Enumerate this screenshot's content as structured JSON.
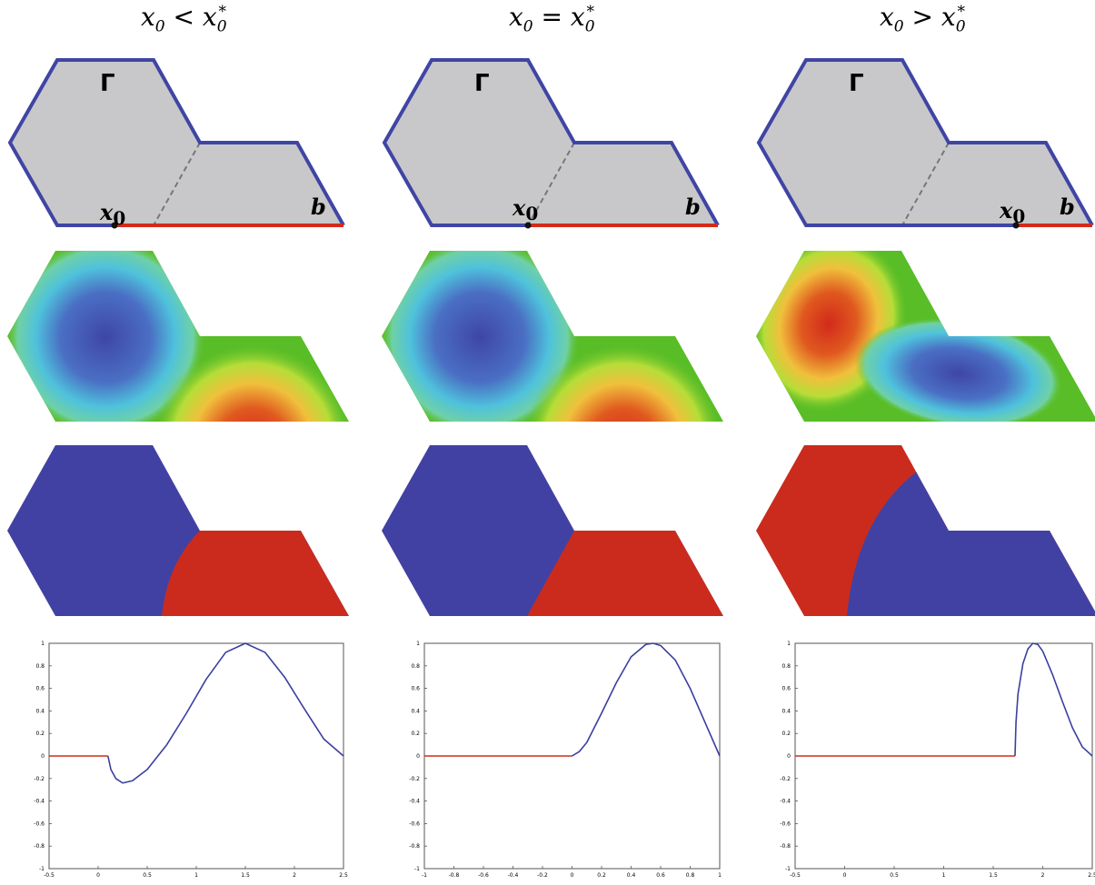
{
  "columns": [
    {
      "header": {
        "lhs": "x",
        "lhs_sub": "0",
        "rel": "<",
        "rhs": "x",
        "rhs_sub": "0",
        "rhs_sup": "*"
      },
      "domain_labels": {
        "gamma": "Γ",
        "point": "x",
        "point_sub": "0",
        "end": "b"
      },
      "x0_position": 0.17,
      "chart_data": {
        "type": "line",
        "xlim": [
          -0.5,
          2.5
        ],
        "ylim": [
          -1,
          1
        ],
        "x_ticks": [
          "-0.5",
          "0",
          "0.5",
          "1",
          "1.5",
          "2",
          "2.5"
        ],
        "y_ticks": [
          "1",
          "0.8",
          "0.6",
          "0.4",
          "0.2",
          "0",
          "-0.2",
          "-0.4",
          "-0.6",
          "-0.8",
          "-1"
        ],
        "series": [
          {
            "color": "#d42a1a",
            "x": [
              -0.5,
              0.1
            ],
            "y": [
              0,
              0
            ]
          },
          {
            "color": "#3a3fa0",
            "x": [
              0.1,
              0.13,
              0.18,
              0.25,
              0.35,
              0.5,
              0.7,
              0.9,
              1.1,
              1.3,
              1.5,
              1.7,
              1.9,
              2.1,
              2.3,
              2.5
            ],
            "y": [
              0,
              -0.12,
              -0.2,
              -0.24,
              -0.22,
              -0.12,
              0.1,
              0.38,
              0.68,
              0.92,
              1.0,
              0.92,
              0.7,
              0.42,
              0.15,
              0.0
            ]
          }
        ]
      }
    },
    {
      "header": {
        "lhs": "x",
        "lhs_sub": "0",
        "rel": "=",
        "rhs": "x",
        "rhs_sub": "0",
        "rhs_sup": "*"
      },
      "domain_labels": {
        "gamma": "Γ",
        "point": "x",
        "point_sub": "0",
        "end": "b"
      },
      "x0_position": 0.5,
      "chart_data": {
        "type": "line",
        "xlim": [
          -1,
          1
        ],
        "ylim": [
          -1,
          1
        ],
        "x_ticks": [
          "-1",
          "-0.8",
          "-0.6",
          "-0.4",
          "-0.2",
          "0",
          "0.2",
          "0.4",
          "0.6",
          "0.8",
          "1"
        ],
        "y_ticks": [
          "1",
          "0.8",
          "0.6",
          "0.4",
          "0.2",
          "0",
          "-0.2",
          "-0.4",
          "-0.6",
          "-0.8",
          "-1"
        ],
        "series": [
          {
            "color": "#d42a1a",
            "x": [
              -1,
              0
            ],
            "y": [
              0,
              0
            ]
          },
          {
            "color": "#3a3fa0",
            "x": [
              0,
              0.05,
              0.1,
              0.2,
              0.3,
              0.4,
              0.5,
              0.55,
              0.6,
              0.7,
              0.8,
              0.9,
              1.0
            ],
            "y": [
              0,
              0.04,
              0.12,
              0.38,
              0.65,
              0.88,
              0.99,
              1.0,
              0.98,
              0.85,
              0.6,
              0.3,
              0.0
            ]
          }
        ]
      }
    },
    {
      "header": {
        "lhs": "x",
        "lhs_sub": "0",
        "rel": ">",
        "rhs": "x",
        "rhs_sub": "0",
        "rhs_sup": "*"
      },
      "domain_labels": {
        "gamma": "Γ",
        "point": "x",
        "point_sub": "0",
        "end": "b"
      },
      "x0_position": 0.8,
      "chart_data": {
        "type": "line",
        "xlim": [
          -0.5,
          2.5
        ],
        "ylim": [
          -1,
          1
        ],
        "x_ticks": [
          "-0.5",
          "0",
          "0.5",
          "1",
          "1.5",
          "2",
          "2.5"
        ],
        "y_ticks": [
          "1",
          "0.8",
          "0.6",
          "0.4",
          "0.2",
          "0",
          "-0.2",
          "-0.4",
          "-0.6",
          "-0.8",
          "-1"
        ],
        "series": [
          {
            "color": "#d42a1a",
            "x": [
              -0.5,
              1.72
            ],
            "y": [
              0,
              0
            ]
          },
          {
            "color": "#3a3fa0",
            "x": [
              1.72,
              1.73,
              1.75,
              1.8,
              1.85,
              1.9,
              1.95,
              2.0,
              2.1,
              2.2,
              2.3,
              2.4,
              2.5
            ],
            "y": [
              0,
              0.3,
              0.55,
              0.82,
              0.95,
              1.0,
              0.99,
              0.93,
              0.72,
              0.48,
              0.25,
              0.08,
              0.0
            ]
          }
        ]
      }
    }
  ]
}
